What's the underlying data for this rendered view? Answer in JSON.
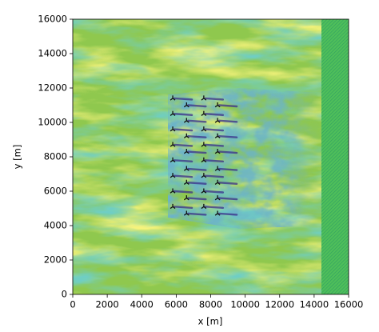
{
  "chart_data": {
    "type": "scatter",
    "xlabel": "x [m]",
    "ylabel": "y [m]",
    "x": [
      5800,
      7600,
      6600,
      8400,
      5800,
      7600,
      6600,
      8400,
      5800,
      7600,
      6600,
      8400,
      5800,
      7600,
      6600,
      8400,
      5800,
      7600,
      6600,
      8400,
      5800,
      7600,
      6600,
      8400,
      5800,
      7600,
      6600,
      8400,
      5800,
      7600,
      6600,
      8400
    ],
    "values": [
      11400,
      11400,
      11000,
      11000,
      10500,
      10500,
      10100,
      10100,
      9600,
      9600,
      9200,
      9200,
      8700,
      8700,
      8300,
      8300,
      7800,
      7800,
      7300,
      7300,
      6900,
      6900,
      6500,
      6500,
      6000,
      6000,
      5600,
      5600,
      5100,
      5100,
      4700,
      4700
    ],
    "color": "#111111",
    "xlim": [
      0,
      16000
    ],
    "ylim": [
      0,
      16000
    ],
    "xticks": [
      0,
      2000,
      4000,
      6000,
      8000,
      10000,
      12000,
      14000,
      16000
    ],
    "yticks": [
      0,
      2000,
      4000,
      6000,
      8000,
      10000,
      12000,
      14000,
      16000
    ]
  }
}
